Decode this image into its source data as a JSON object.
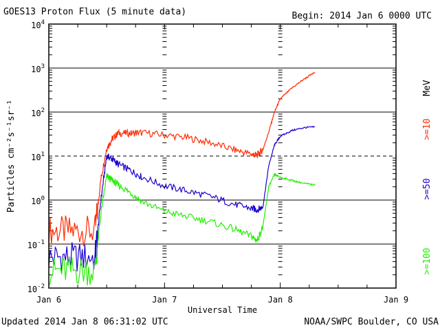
{
  "header": {
    "title": "GOES13 Proton Flux (5 minute data)",
    "begin": "Begin: 2014 Jan 6 0000 UTC"
  },
  "footer": {
    "updated": "Updated 2014 Jan  8 06:31:02 UTC",
    "credit": "NOAA/SWPC Boulder, CO USA"
  },
  "chart_data": {
    "type": "line",
    "title": "GOES13 Proton Flux (5 minute data)",
    "xlabel": "Universal Time",
    "ylabel": "Particles cm⁻²s⁻¹sr⁻¹",
    "yscale": "log",
    "ylim": [
      0.01,
      10000
    ],
    "xlim": [
      0,
      3
    ],
    "x_ticks": [
      {
        "value": 0,
        "label": "Jan 6"
      },
      {
        "value": 1,
        "label": "Jan 7"
      },
      {
        "value": 2,
        "label": "Jan 8"
      },
      {
        "value": 3,
        "label": "Jan 9"
      }
    ],
    "y_ticks": [
      {
        "value": 0.01,
        "base": "10",
        "exp": "-2"
      },
      {
        "value": 0.1,
        "base": "10",
        "exp": "-1"
      },
      {
        "value": 1,
        "base": "10",
        "exp": "0"
      },
      {
        "value": 10,
        "base": "10",
        "exp": "1"
      },
      {
        "value": 100,
        "base": "10",
        "exp": "2"
      },
      {
        "value": 1000,
        "base": "10",
        "exp": "3"
      },
      {
        "value": 10000,
        "base": "10",
        "exp": "4"
      }
    ],
    "threshold_line": 10,
    "grid": true,
    "right_unit": "MeV",
    "series": [
      {
        "name": ">=10",
        "color": "#ff2a00",
        "x": [
          0,
          0.2,
          0.4,
          0.45,
          0.5,
          0.55,
          0.6,
          0.7,
          0.8,
          1.0,
          1.2,
          1.4,
          1.6,
          1.75,
          1.8,
          1.85,
          1.9,
          1.95,
          2.0,
          2.1,
          2.2,
          2.3
        ],
        "y": [
          0.2,
          0.2,
          0.2,
          3,
          15,
          25,
          33,
          33,
          34,
          30,
          26,
          20,
          14,
          11,
          10.5,
          14,
          35,
          100,
          200,
          350,
          550,
          800
        ]
      },
      {
        "name": ">=50",
        "color": "#1a00d0",
        "x": [
          0,
          0.2,
          0.4,
          0.45,
          0.5,
          0.55,
          0.6,
          0.7,
          0.8,
          1.0,
          1.2,
          1.4,
          1.6,
          1.75,
          1.8,
          1.85,
          1.9,
          1.95,
          2.0,
          2.1,
          2.2,
          2.3
        ],
        "y": [
          0.05,
          0.05,
          0.05,
          1,
          10,
          8.5,
          6.5,
          4.8,
          3.4,
          2.1,
          1.6,
          1.2,
          0.8,
          0.65,
          0.6,
          0.7,
          6,
          18,
          28,
          38,
          44,
          46
        ]
      },
      {
        "name": ">=100",
        "color": "#22ee00",
        "x": [
          0,
          0.2,
          0.4,
          0.45,
          0.5,
          0.55,
          0.6,
          0.7,
          0.8,
          1.0,
          1.2,
          1.4,
          1.6,
          1.75,
          1.8,
          1.85,
          1.9,
          1.95,
          2.0,
          2.1,
          2.2,
          2.3
        ],
        "y": [
          0.025,
          0.025,
          0.025,
          0.5,
          3.5,
          2.8,
          2.2,
          1.5,
          0.95,
          0.55,
          0.42,
          0.32,
          0.22,
          0.15,
          0.12,
          0.25,
          2,
          3.8,
          3.3,
          2.8,
          2.4,
          2.2
        ]
      }
    ]
  }
}
